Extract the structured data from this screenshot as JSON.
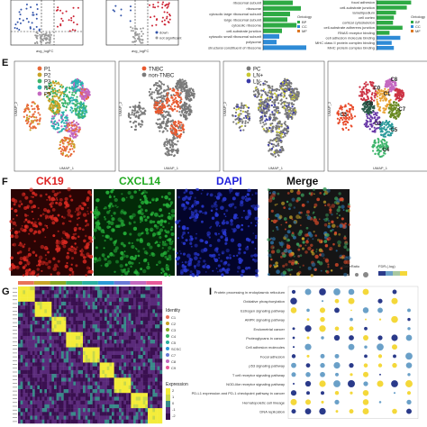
{
  "panels": {
    "E": "E",
    "F": "F",
    "G": "G",
    "I": "I"
  },
  "volcano": {
    "xlabel": "avg_logFC",
    "legend": [
      "down",
      "not significant"
    ],
    "colors": {
      "down": "#3355aa",
      "up": "#cc2233",
      "ns": "#999999"
    }
  },
  "enrich_left": {
    "terms": [
      "ribosomal subunit",
      "ribosome",
      "cytosolic large ribosomal subunit",
      "large ribosomal subunit",
      "cytosolic ribosome",
      "cell-substrate junction",
      "cytosolic small ribosomal subunit",
      "polysome",
      "structural constituent of ribosome"
    ],
    "values": [
      0.55,
      0.7,
      0.5,
      0.45,
      0.62,
      0.35,
      0.3,
      0.25,
      0.8
    ],
    "legend_title": "Ontology",
    "legend": [
      "BP",
      "CC",
      "MF"
    ],
    "colors": [
      "#2eaa44",
      "#2e8bd6",
      "#dd7722"
    ]
  },
  "enrich_right": {
    "terms": [
      "focal adhesion",
      "cell-substrate junction",
      "lamellipodium",
      "cell cortex",
      "cortical cytoskeleton",
      "cell-substrate adherens junction",
      "RNAS receptor binding",
      "cell adhesion molecule binding",
      "MHC class II protein complex binding",
      "MHC protein complex binding"
    ],
    "values": [
      0.8,
      0.7,
      0.45,
      0.4,
      0.38,
      0.6,
      0.3,
      0.55,
      0.35,
      0.4
    ],
    "legend_title": "Ontology",
    "legend": [
      "BP",
      "CC",
      "MF"
    ],
    "colors": [
      "#2eaa44",
      "#2e8bd6",
      "#dd7722"
    ]
  },
  "umap": {
    "axis_x": "UMAP_1",
    "axis_y": "UMAP_2",
    "patients": {
      "legend": [
        "P1",
        "P2",
        "P3",
        "P4",
        "P5"
      ],
      "colors": [
        "#e86a3a",
        "#c8a428",
        "#3cb46a",
        "#2ab0b0",
        "#c468c0"
      ]
    },
    "subtype": {
      "legend": [
        "TNBC",
        "non-TNBC"
      ],
      "colors": [
        "#e8592f",
        "#7a7a7a"
      ]
    },
    "site": {
      "legend": [
        "PC",
        "LN+",
        "LN-"
      ],
      "colors": [
        "#7a7a7a",
        "#c8c832",
        "#3a3aa8"
      ]
    },
    "clusters": {
      "labels": [
        "C0",
        "C1",
        "C2",
        "C3",
        "C4",
        "C5",
        "C6",
        "C7",
        "C8"
      ],
      "colors": [
        "#cc3344",
        "#e8a030",
        "#6a3aa8",
        "#e84a2a",
        "#3cb46a",
        "#2a9a9a",
        "#2a5a4a",
        "#6a8a22",
        "#c468c0"
      ]
    }
  },
  "stains": {
    "labels": [
      "CK19",
      "CXCL14",
      "DAPI",
      "Merge"
    ],
    "colors": [
      "#dd2222",
      "#22aa22",
      "#2222dd",
      "#111111"
    ]
  },
  "heatmap": {
    "identity_title": "Identity",
    "identity": [
      "C1",
      "C2",
      "C3",
      "C4",
      "C5",
      "SCSC",
      "C7",
      "C8",
      "C9"
    ],
    "identity_colors": [
      "#e8745a",
      "#c8a428",
      "#8aaa22",
      "#3cb46a",
      "#2ab0a0",
      "#2a9ad6",
      "#6a7ad6",
      "#c468c0",
      "#e85a9a"
    ],
    "expression_title": "Expression",
    "expression_ticks": [
      "2",
      "1",
      "0",
      "-1",
      "-2"
    ]
  },
  "dotplot": {
    "pathways": [
      "Protein processing in endoplasmic reticulum",
      "Oxidative phosphorylation",
      "Estrogen signaling pathway",
      "AMPK signaling pathway",
      "Endometrial cancer",
      "Proteoglycans in cancer",
      "Cell adhesion molecules",
      "Focal adhesion",
      "p53 signaling pathway",
      "T cell receptor signaling pathway",
      "NOD-like receptor signaling pathway",
      "PD-L1 expression and PD-1 checkpoint pathway in cancer",
      "Hematopoietic cell lineage",
      "DNA replication"
    ],
    "legend_count": "GeneRatio",
    "legend_fdr": "FDR.(-log)"
  }
}
